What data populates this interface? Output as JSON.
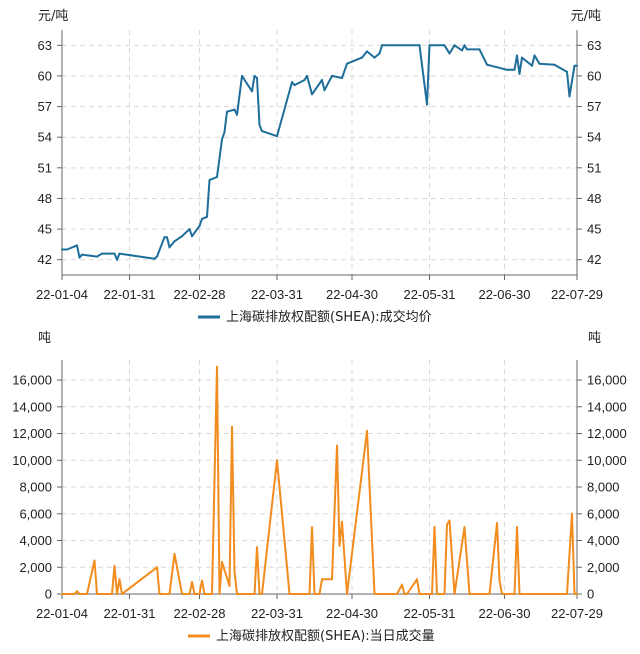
{
  "chart_data": [
    {
      "type": "line",
      "unit_left": "元/吨",
      "unit_right": "元/吨",
      "x_ticks": [
        "22-01-04",
        "22-01-31",
        "22-02-28",
        "22-03-31",
        "22-04-30",
        "22-05-31",
        "22-06-30",
        "22-07-29"
      ],
      "y_ticks": [
        42,
        45,
        48,
        51,
        54,
        57,
        60,
        63
      ],
      "ylim": [
        40.5,
        64.5
      ],
      "x_range": [
        "2022-01-04",
        "2022-07-29"
      ],
      "grid": true,
      "legend_position": "bottom",
      "series": [
        {
          "name": "上海碳排放权配额(SHEA):成交均价",
          "color": "#1f6e9a",
          "points": [
            [
              "2022-01-04",
              43.0
            ],
            [
              "2022-01-06",
              43.0
            ],
            [
              "2022-01-10",
              43.4
            ],
            [
              "2022-01-11",
              42.2
            ],
            [
              "2022-01-12",
              42.5
            ],
            [
              "2022-01-18",
              42.3
            ],
            [
              "2022-01-20",
              42.6
            ],
            [
              "2022-01-25",
              42.6
            ],
            [
              "2022-01-26",
              42.0
            ],
            [
              "2022-01-27",
              42.6
            ],
            [
              "2022-02-10",
              42.1
            ],
            [
              "2022-02-11",
              42.3
            ],
            [
              "2022-02-14",
              44.2
            ],
            [
              "2022-02-15",
              44.2
            ],
            [
              "2022-02-16",
              43.2
            ],
            [
              "2022-02-18",
              43.8
            ],
            [
              "2022-02-21",
              44.3
            ],
            [
              "2022-02-24",
              45.0
            ],
            [
              "2022-02-25",
              44.3
            ],
            [
              "2022-02-28",
              45.3
            ],
            [
              "2022-03-01",
              46.0
            ],
            [
              "2022-03-03",
              46.2
            ],
            [
              "2022-03-04",
              49.8
            ],
            [
              "2022-03-07",
              50.1
            ],
            [
              "2022-03-09",
              53.8
            ],
            [
              "2022-03-10",
              54.5
            ],
            [
              "2022-03-11",
              56.5
            ],
            [
              "2022-03-14",
              56.7
            ],
            [
              "2022-03-15",
              56.2
            ],
            [
              "2022-03-17",
              60.0
            ],
            [
              "2022-03-21",
              58.5
            ],
            [
              "2022-03-22",
              60.0
            ],
            [
              "2022-03-23",
              59.8
            ],
            [
              "2022-03-24",
              55.2
            ],
            [
              "2022-03-25",
              54.6
            ],
            [
              "2022-03-31",
              54.1
            ],
            [
              "2022-04-06",
              59.4
            ],
            [
              "2022-04-07",
              59.1
            ],
            [
              "2022-04-11",
              59.6
            ],
            [
              "2022-04-12",
              60.0
            ],
            [
              "2022-04-14",
              58.2
            ],
            [
              "2022-04-18",
              59.6
            ],
            [
              "2022-04-19",
              58.6
            ],
            [
              "2022-04-22",
              60.0
            ],
            [
              "2022-04-26",
              59.8
            ],
            [
              "2022-04-28",
              61.2
            ],
            [
              "2022-05-04",
              61.8
            ],
            [
              "2022-05-06",
              62.4
            ],
            [
              "2022-05-09",
              61.8
            ],
            [
              "2022-05-11",
              62.2
            ],
            [
              "2022-05-12",
              63.0
            ],
            [
              "2022-05-27",
              63.0
            ],
            [
              "2022-05-30",
              57.2
            ],
            [
              "2022-05-31",
              63.0
            ],
            [
              "2022-06-06",
              63.0
            ],
            [
              "2022-06-08",
              62.2
            ],
            [
              "2022-06-10",
              63.0
            ],
            [
              "2022-06-13",
              62.5
            ],
            [
              "2022-06-14",
              63.0
            ],
            [
              "2022-06-15",
              62.6
            ],
            [
              "2022-06-20",
              62.6
            ],
            [
              "2022-06-23",
              61.1
            ],
            [
              "2022-07-01",
              60.6
            ],
            [
              "2022-07-04",
              60.6
            ],
            [
              "2022-07-05",
              62.0
            ],
            [
              "2022-07-06",
              60.2
            ],
            [
              "2022-07-07",
              61.8
            ],
            [
              "2022-07-11",
              61.0
            ],
            [
              "2022-07-12",
              62.0
            ],
            [
              "2022-07-14",
              61.2
            ],
            [
              "2022-07-20",
              61.1
            ],
            [
              "2022-07-25",
              60.4
            ],
            [
              "2022-07-26",
              58.0
            ],
            [
              "2022-07-28",
              61.0
            ],
            [
              "2022-07-29",
              61.0
            ]
          ]
        }
      ]
    },
    {
      "type": "line",
      "unit_left": "吨",
      "unit_right": "吨",
      "x_ticks": [
        "22-01-04",
        "22-01-31",
        "22-02-28",
        "22-03-31",
        "22-04-30",
        "22-05-31",
        "22-06-30",
        "22-07-29"
      ],
      "y_ticks": [
        "0",
        "2,000",
        "4,000",
        "6,000",
        "8,000",
        "10,000",
        "12,000",
        "14,000",
        "16,000"
      ],
      "ylim": [
        0,
        17500
      ],
      "x_range": [
        "2022-01-04",
        "2022-07-29"
      ],
      "grid": true,
      "legend_position": "bottom",
      "series": [
        {
          "name": "上海碳排放权配额(SHEA):当日成交量",
          "color": "#f28c1e",
          "points": [
            [
              "2022-01-04",
              0
            ],
            [
              "2022-01-09",
              0
            ],
            [
              "2022-01-10",
              200
            ],
            [
              "2022-01-11",
              0
            ],
            [
              "2022-01-14",
              0
            ],
            [
              "2022-01-17",
              2500
            ],
            [
              "2022-01-18",
              0
            ],
            [
              "2022-01-24",
              0
            ],
            [
              "2022-01-25",
              2100
            ],
            [
              "2022-01-26",
              0
            ],
            [
              "2022-01-27",
              1100
            ],
            [
              "2022-01-28",
              0
            ],
            [
              "2022-02-11",
              2000
            ],
            [
              "2022-02-12",
              0
            ],
            [
              "2022-02-16",
              0
            ],
            [
              "2022-02-18",
              3000
            ],
            [
              "2022-02-21",
              0
            ],
            [
              "2022-02-24",
              0
            ],
            [
              "2022-02-25",
              900
            ],
            [
              "2022-02-26",
              0
            ],
            [
              "2022-02-28",
              0
            ],
            [
              "2022-03-01",
              1000
            ],
            [
              "2022-03-02",
              0
            ],
            [
              "2022-03-05",
              0
            ],
            [
              "2022-03-07",
              17000
            ],
            [
              "2022-03-08",
              0
            ],
            [
              "2022-03-09",
              2400
            ],
            [
              "2022-03-12",
              600
            ],
            [
              "2022-03-13",
              12500
            ],
            [
              "2022-03-14",
              1700
            ],
            [
              "2022-03-15",
              0
            ],
            [
              "2022-03-17",
              0
            ],
            [
              "2022-03-22",
              0
            ],
            [
              "2022-03-23",
              3500
            ],
            [
              "2022-03-24",
              0
            ],
            [
              "2022-03-25",
              0
            ],
            [
              "2022-03-31",
              10000
            ],
            [
              "2022-04-05",
              0
            ],
            [
              "2022-04-13",
              0
            ],
            [
              "2022-04-14",
              5000
            ],
            [
              "2022-04-15",
              0
            ],
            [
              "2022-04-17",
              0
            ],
            [
              "2022-04-18",
              1100
            ],
            [
              "2022-04-22",
              1100
            ],
            [
              "2022-04-24",
              11100
            ],
            [
              "2022-04-25",
              3600
            ],
            [
              "2022-04-26",
              5400
            ],
            [
              "2022-04-28",
              0
            ],
            [
              "2022-05-06",
              12200
            ],
            [
              "2022-05-09",
              0
            ],
            [
              "2022-05-13",
              0
            ],
            [
              "2022-05-18",
              0
            ],
            [
              "2022-05-20",
              700
            ],
            [
              "2022-05-21",
              0
            ],
            [
              "2022-05-22",
              0
            ],
            [
              "2022-05-26",
              1100
            ],
            [
              "2022-05-27",
              0
            ],
            [
              "2022-06-01",
              0
            ],
            [
              "2022-06-02",
              5000
            ],
            [
              "2022-06-03",
              0
            ],
            [
              "2022-06-06",
              0
            ],
            [
              "2022-06-07",
              5200
            ],
            [
              "2022-06-08",
              5500
            ],
            [
              "2022-06-10",
              0
            ],
            [
              "2022-06-14",
              5000
            ],
            [
              "2022-06-16",
              0
            ],
            [
              "2022-06-20",
              0
            ],
            [
              "2022-06-24",
              0
            ],
            [
              "2022-06-27",
              5300
            ],
            [
              "2022-06-28",
              1000
            ],
            [
              "2022-06-29",
              0
            ],
            [
              "2022-07-04",
              0
            ],
            [
              "2022-07-05",
              5000
            ],
            [
              "2022-07-06",
              0
            ],
            [
              "2022-07-25",
              0
            ],
            [
              "2022-07-27",
              6000
            ],
            [
              "2022-07-28",
              0
            ],
            [
              "2022-07-29",
              0
            ]
          ]
        }
      ]
    }
  ]
}
